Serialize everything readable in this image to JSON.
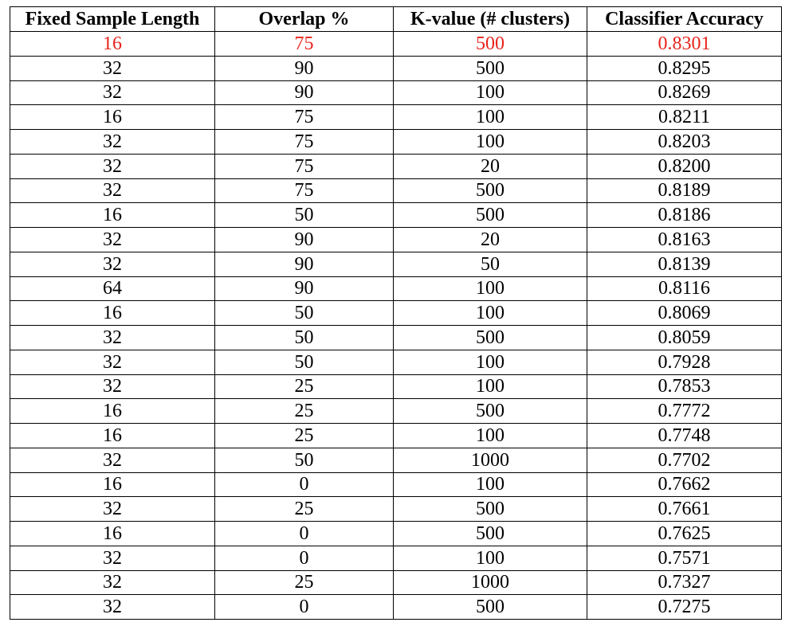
{
  "table": {
    "headers": [
      "Fixed Sample Length",
      "Overlap %",
      "K-value (# clusters)",
      "Classifier Accuracy"
    ],
    "highlight_color": "#e8231c",
    "rows": [
      [
        "16",
        "75",
        "500",
        "0.8301"
      ],
      [
        "32",
        "90",
        "500",
        "0.8295"
      ],
      [
        "32",
        "90",
        "100",
        "0.8269"
      ],
      [
        "16",
        "75",
        "100",
        "0.8211"
      ],
      [
        "32",
        "75",
        "100",
        "0.8203"
      ],
      [
        "32",
        "75",
        "20",
        "0.8200"
      ],
      [
        "32",
        "75",
        "500",
        "0.8189"
      ],
      [
        "16",
        "50",
        "500",
        "0.8186"
      ],
      [
        "32",
        "90",
        "20",
        "0.8163"
      ],
      [
        "32",
        "90",
        "50",
        "0.8139"
      ],
      [
        "64",
        "90",
        "100",
        "0.8116"
      ],
      [
        "16",
        "50",
        "100",
        "0.8069"
      ],
      [
        "32",
        "50",
        "500",
        "0.8059"
      ],
      [
        "32",
        "50",
        "100",
        "0.7928"
      ],
      [
        "32",
        "25",
        "100",
        "0.7853"
      ],
      [
        "16",
        "25",
        "500",
        "0.7772"
      ],
      [
        "16",
        "25",
        "100",
        "0.7748"
      ],
      [
        "32",
        "50",
        "1000",
        "0.7702"
      ],
      [
        "16",
        "0",
        "100",
        "0.7662"
      ],
      [
        "32",
        "25",
        "500",
        "0.7661"
      ],
      [
        "16",
        "0",
        "500",
        "0.7625"
      ],
      [
        "32",
        "0",
        "100",
        "0.7571"
      ],
      [
        "32",
        "25",
        "1000",
        "0.7327"
      ],
      [
        "32",
        "0",
        "500",
        "0.7275"
      ]
    ]
  }
}
